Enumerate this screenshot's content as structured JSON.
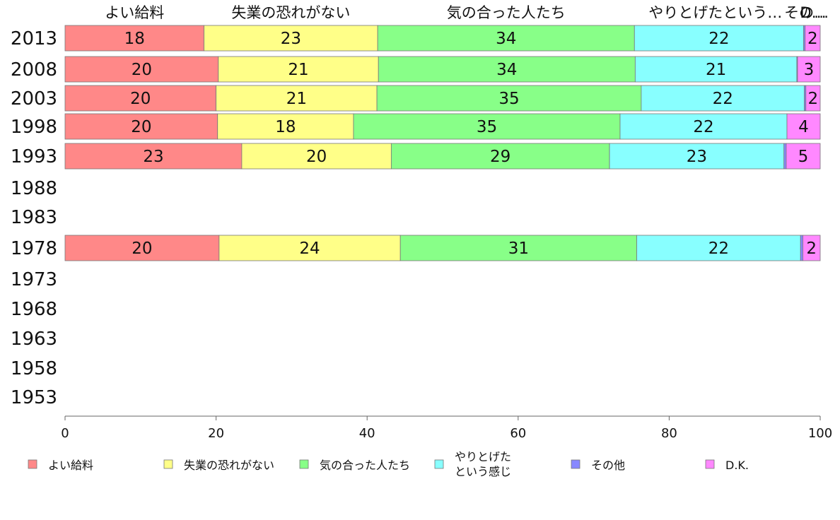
{
  "chart_data": {
    "type": "bar",
    "orientation": "horizontal",
    "stacked": true,
    "categories": [
      "2013",
      "2008",
      "2003",
      "1998",
      "1993",
      "1988",
      "1983",
      "1978",
      "1973",
      "1968",
      "1963",
      "1958",
      "1953"
    ],
    "series": [
      {
        "name": "よい給料",
        "color": "#ff8888",
        "values": [
          18.4,
          20.3,
          20.0,
          20.2,
          23.4,
          null,
          null,
          20.4,
          null,
          null,
          null,
          null,
          null
        ]
      },
      {
        "name": "失業の恐れがない",
        "color": "#ffff88",
        "values": [
          23.0,
          21.2,
          21.3,
          18.0,
          19.8,
          null,
          null,
          24.0,
          null,
          null,
          null,
          null,
          null
        ]
      },
      {
        "name": "気の合った人たち",
        "color": "#88ff88",
        "values": [
          34.0,
          34.0,
          35.0,
          35.3,
          28.9,
          null,
          null,
          31.3,
          null,
          null,
          null,
          null,
          null
        ]
      },
      {
        "name": "やりとげたという感じ",
        "color": "#88ffff",
        "values": [
          22.4,
          21.4,
          21.6,
          22.1,
          23.1,
          null,
          null,
          21.7,
          null,
          null,
          null,
          null,
          null
        ]
      },
      {
        "name": "その他",
        "color": "#8888ff",
        "values": [
          0.2,
          0.1,
          0.2,
          0.0,
          0.3,
          null,
          null,
          0.3,
          null,
          null,
          null,
          null,
          null
        ]
      },
      {
        "name": "D.K.",
        "color": "#ff88ff",
        "values": [
          2.0,
          3.0,
          1.9,
          4.4,
          4.5,
          null,
          null,
          2.3,
          null,
          null,
          null,
          null,
          null
        ]
      }
    ],
    "data_labels": [
      [
        "18",
        "23",
        "34",
        "22",
        "",
        "2"
      ],
      [
        "20",
        "21",
        "34",
        "21",
        "",
        "3"
      ],
      [
        "20",
        "21",
        "35",
        "22",
        "",
        "2"
      ],
      [
        "20",
        "18",
        "35",
        "22",
        "",
        "4"
      ],
      [
        "23",
        "20",
        "29",
        "23",
        "",
        "5"
      ],
      null,
      null,
      [
        "20",
        "24",
        "31",
        "22",
        "",
        "2"
      ],
      null,
      null,
      null,
      null,
      null
    ],
    "top_labels": [
      "よい給料",
      "失業の恐れがない",
      "気の合った人たち",
      "やりとげたという…",
      "その…",
      "D…"
    ],
    "xlim": [
      0,
      100
    ],
    "xticks": [
      "0",
      "20",
      "40",
      "60",
      "80",
      "100"
    ],
    "legend": [
      {
        "label": "よい給料",
        "color": "#ff8888"
      },
      {
        "label": "失業の恐れがない",
        "color": "#ffff88"
      },
      {
        "label": "気の合った人たち",
        "color": "#88ff88"
      },
      {
        "label": "やりとげた\nという感じ",
        "color": "#88ffff"
      },
      {
        "label": "その他",
        "color": "#8888ff"
      },
      {
        "label": "D.K.",
        "color": "#ff88ff"
      }
    ],
    "legend_position": "bottom",
    "grid": false
  }
}
